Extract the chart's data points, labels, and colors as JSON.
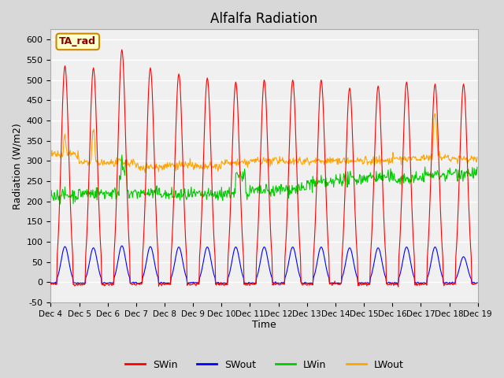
{
  "title": "Alfalfa Radiation",
  "ylabel": "Radiation (W/m2)",
  "xlabel": "Time",
  "ylim": [
    -50,
    625
  ],
  "x_tick_labels": [
    "Dec 4",
    "Dec 5",
    "Dec 6",
    "Dec 7",
    "Dec 8",
    "Dec 9",
    "Dec 10",
    "Dec 11",
    "Dec 12",
    "Dec 13",
    "Dec 14",
    "Dec 15",
    "Dec 16",
    "Dec 17",
    "Dec 18",
    "Dec 19"
  ],
  "series_colors": {
    "SWin": "#ff0000",
    "SWout": "#0000ff",
    "LWin": "#00cc00",
    "LWout": "#ffa500"
  },
  "annotation_text": "TA_rad",
  "annotation_box_color": "#ffffcc",
  "annotation_border_color": "#cc8800",
  "fig_bg_color": "#d8d8d8",
  "plot_bg_color": "#f0f0f0",
  "grid_color": "#ffffff",
  "n_days": 15,
  "dt_hours": 0.5
}
